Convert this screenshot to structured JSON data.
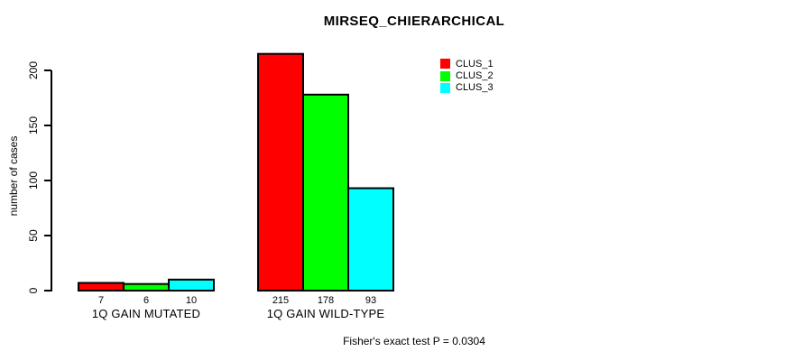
{
  "chart_data": {
    "type": "bar",
    "title": "MIRSEQ_CHIERARCHICAL",
    "ylabel": "number of cases",
    "xlabel": "",
    "categories": [
      "1Q GAIN MUTATED",
      "1Q GAIN WILD-TYPE"
    ],
    "series": [
      {
        "name": "CLUS_1",
        "color": "#ff0000",
        "values": [
          7,
          215
        ]
      },
      {
        "name": "CLUS_2",
        "color": "#00ff00",
        "values": [
          6,
          178
        ]
      },
      {
        "name": "CLUS_3",
        "color": "#00ffff",
        "values": [
          10,
          93
        ]
      }
    ],
    "value_labels": [
      [
        7,
        6,
        10
      ],
      [
        215,
        178,
        93
      ]
    ],
    "yticks": [
      0,
      50,
      100,
      150,
      200
    ],
    "ylim": [
      0,
      220
    ],
    "grid": false,
    "legend_position": "top-right",
    "bar_border_color": "#000000",
    "axis_color": "#000000",
    "background_color": "#ffffff"
  },
  "footer": {
    "note": "Fisher's exact test P = 0.0304"
  }
}
